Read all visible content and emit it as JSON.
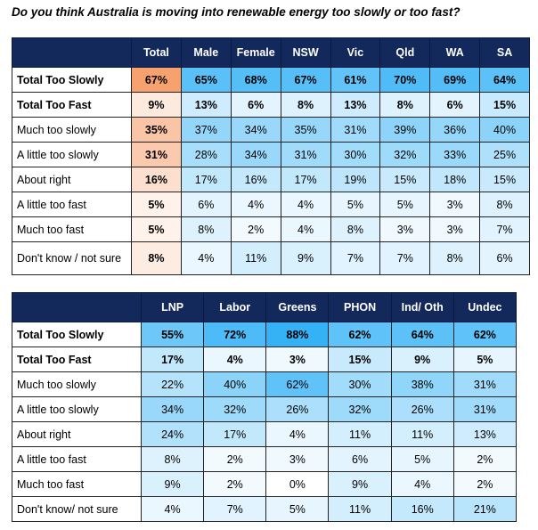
{
  "title": "Do you think Australia is moving into renewable energy too slowly or too fast?",
  "colors": {
    "header": "#13295b",
    "heat_blue": "#2aaef5",
    "heat_orange": "#f5894a"
  },
  "table1": {
    "columns": [
      "Total",
      "Male",
      "Female",
      "NSW",
      "Vic",
      "Qld",
      "WA",
      "SA"
    ],
    "rows": [
      {
        "label": "Total Too Slowly",
        "bold": true,
        "values": [
          "67%",
          "65%",
          "68%",
          "67%",
          "61%",
          "70%",
          "69%",
          "64%"
        ]
      },
      {
        "label": "Total Too Fast",
        "bold": true,
        "values": [
          "9%",
          "13%",
          "6%",
          "8%",
          "13%",
          "8%",
          "6%",
          "15%"
        ]
      },
      {
        "label": "Much too slowly",
        "values": [
          "35%",
          "37%",
          "34%",
          "35%",
          "31%",
          "39%",
          "36%",
          "40%"
        ]
      },
      {
        "label": "A little too slowly",
        "values": [
          "31%",
          "28%",
          "34%",
          "31%",
          "30%",
          "32%",
          "33%",
          "25%"
        ]
      },
      {
        "label": "About right",
        "values": [
          "16%",
          "17%",
          "16%",
          "17%",
          "19%",
          "15%",
          "18%",
          "15%"
        ]
      },
      {
        "label": "A little too fast",
        "values": [
          "5%",
          "6%",
          "4%",
          "4%",
          "5%",
          "5%",
          "3%",
          "8%"
        ]
      },
      {
        "label": "Much too fast",
        "values": [
          "5%",
          "8%",
          "2%",
          "4%",
          "8%",
          "3%",
          "3%",
          "7%"
        ]
      },
      {
        "label": "Don't know / not sure",
        "values": [
          "8%",
          "4%",
          "11%",
          "9%",
          "7%",
          "7%",
          "8%",
          "6%"
        ]
      }
    ]
  },
  "table2": {
    "columns": [
      "LNP",
      "Labor",
      "Greens",
      "PHON",
      "Ind/ Oth",
      "Undec"
    ],
    "rows": [
      {
        "label": "Total Too Slowly",
        "bold": true,
        "values": [
          "55%",
          "72%",
          "88%",
          "62%",
          "64%",
          "62%"
        ]
      },
      {
        "label": "Total Too Fast",
        "bold": true,
        "values": [
          "17%",
          "4%",
          "3%",
          "15%",
          "9%",
          "5%"
        ]
      },
      {
        "label": "Much too slowly",
        "values": [
          "22%",
          "40%",
          "62%",
          "30%",
          "38%",
          "31%"
        ]
      },
      {
        "label": "A little too slowly",
        "values": [
          "34%",
          "32%",
          "26%",
          "32%",
          "26%",
          "31%"
        ]
      },
      {
        "label": "About right",
        "values": [
          "24%",
          "17%",
          "4%",
          "11%",
          "11%",
          "13%"
        ]
      },
      {
        "label": "A little too fast",
        "values": [
          "8%",
          "2%",
          "3%",
          "6%",
          "5%",
          "2%"
        ]
      },
      {
        "label": "Much too fast",
        "values": [
          "9%",
          "2%",
          "0%",
          "9%",
          "4%",
          "2%"
        ]
      },
      {
        "label": "Don't know/ not sure",
        "values": [
          "4%",
          "7%",
          "5%",
          "11%",
          "16%",
          "21%"
        ]
      }
    ]
  }
}
